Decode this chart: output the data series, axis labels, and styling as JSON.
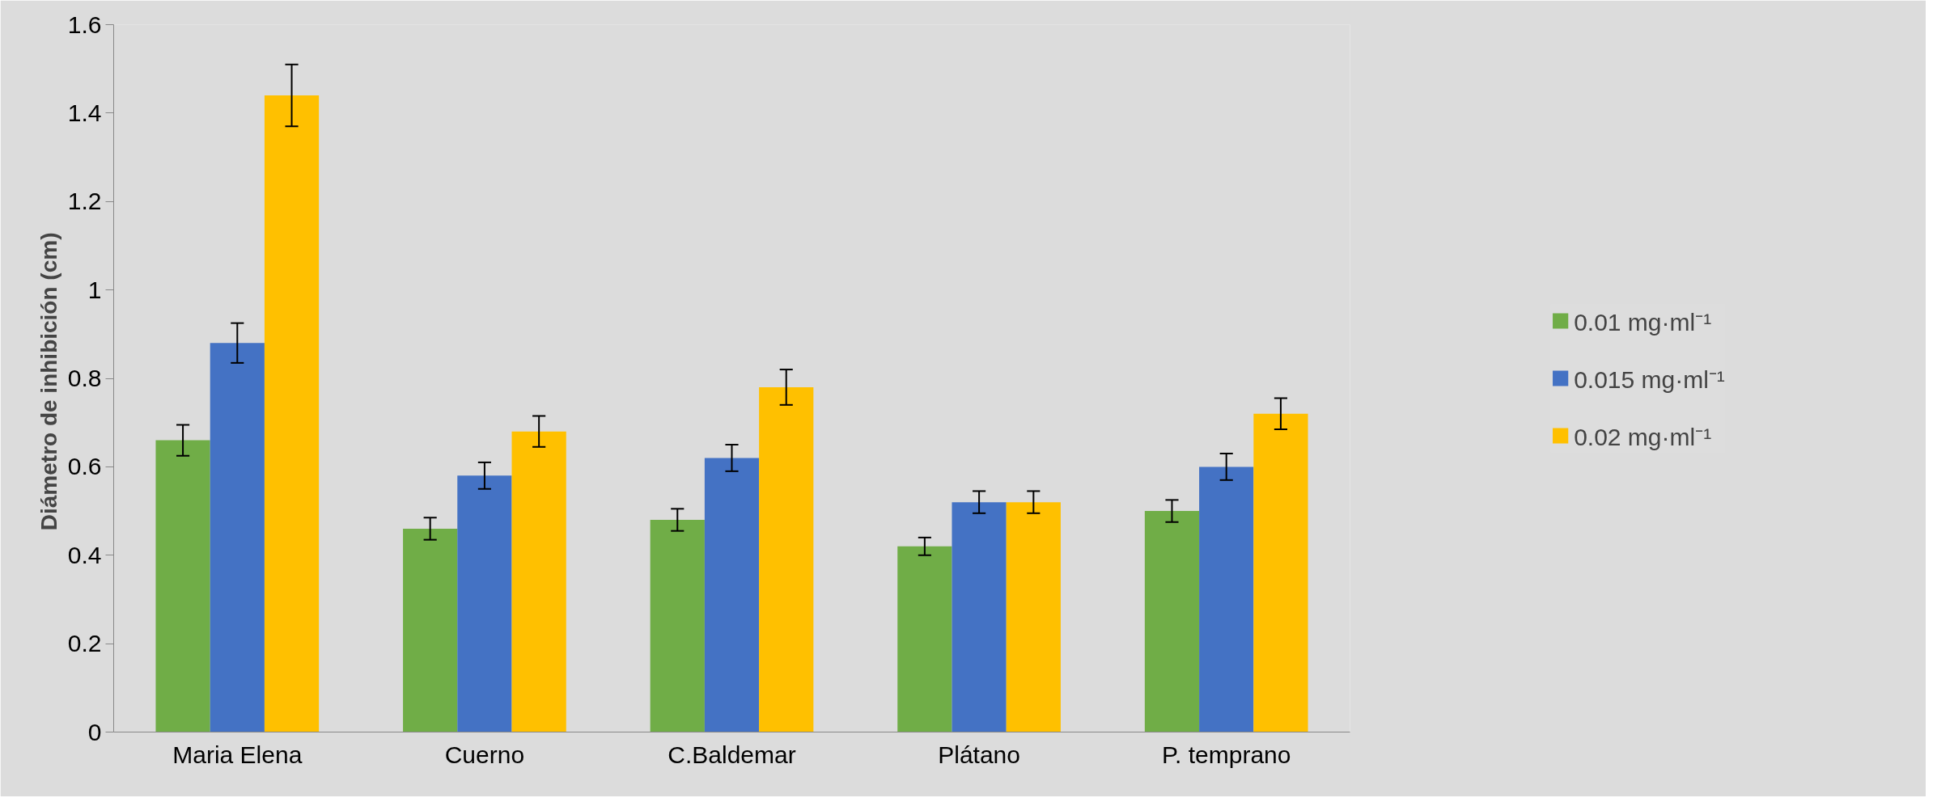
{
  "chart_data": {
    "type": "bar",
    "ylabel": "Diámetro  de inhibición (cm)",
    "categories": [
      "Maria Elena",
      "Cuerno",
      "C.Baldemar",
      "Plátano",
      "P. temprano"
    ],
    "series": [
      {
        "name": "0.01 mg·ml⁻¹",
        "color": "#70ad47",
        "values": [
          0.66,
          0.46,
          0.48,
          0.42,
          0.5
        ],
        "errors": [
          0.035,
          0.025,
          0.025,
          0.02,
          0.025
        ]
      },
      {
        "name": "0.015 mg·ml⁻¹",
        "color": "#4472c4",
        "values": [
          0.88,
          0.58,
          0.62,
          0.52,
          0.6
        ],
        "errors": [
          0.045,
          0.03,
          0.03,
          0.025,
          0.03
        ]
      },
      {
        "name": "0.02 mg·ml⁻¹",
        "color": "#ffc000",
        "values": [
          1.44,
          0.68,
          0.78,
          0.52,
          0.72
        ],
        "errors": [
          0.07,
          0.035,
          0.04,
          0.025,
          0.035
        ]
      }
    ],
    "ylim": [
      0,
      1.6
    ],
    "yticks": [
      0,
      0.2,
      0.4,
      0.6,
      0.8,
      1,
      1.2,
      1.4,
      1.6
    ],
    "grid": false,
    "legend": "right"
  }
}
